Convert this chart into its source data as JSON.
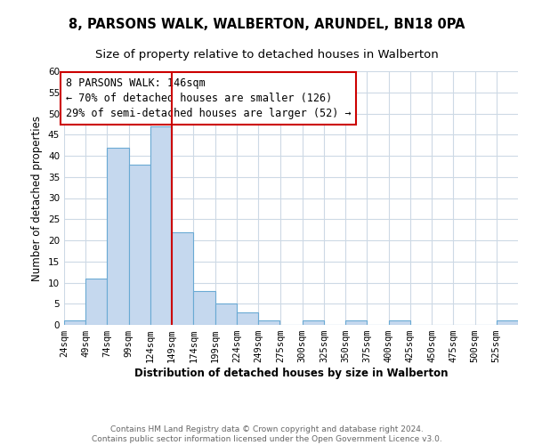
{
  "title": "8, PARSONS WALK, WALBERTON, ARUNDEL, BN18 0PA",
  "subtitle": "Size of property relative to detached houses in Walberton",
  "xlabel": "Distribution of detached houses by size in Walberton",
  "ylabel": "Number of detached properties",
  "bar_color": "#c5d8ee",
  "bar_edge_color": "#6aaad4",
  "bin_edges": [
    24,
    49,
    74,
    99,
    124,
    149,
    174,
    199,
    224,
    249,
    275,
    300,
    325,
    350,
    375,
    400,
    425,
    450,
    475,
    500,
    525,
    550
  ],
  "bin_labels": [
    "24sqm",
    "49sqm",
    "74sqm",
    "99sqm",
    "124sqm",
    "149sqm",
    "174sqm",
    "199sqm",
    "224sqm",
    "249sqm",
    "275sqm",
    "300sqm",
    "325sqm",
    "350sqm",
    "375sqm",
    "400sqm",
    "425sqm",
    "450sqm",
    "475sqm",
    "500sqm",
    "525sqm"
  ],
  "bar_heights": [
    1,
    11,
    42,
    38,
    47,
    22,
    8,
    5,
    3,
    1,
    0,
    1,
    0,
    1,
    0,
    1,
    0,
    0,
    0,
    0,
    1
  ],
  "ylim": [
    0,
    60
  ],
  "yticks": [
    0,
    5,
    10,
    15,
    20,
    25,
    30,
    35,
    40,
    45,
    50,
    55,
    60
  ],
  "vline_x": 149,
  "vline_color": "#cc0000",
  "annotation_line1": "8 PARSONS WALK: 146sqm",
  "annotation_line2": "← 70% of detached houses are smaller (126)",
  "annotation_line3": "29% of semi-detached houses are larger (52) →",
  "footer_line1": "Contains HM Land Registry data © Crown copyright and database right 2024.",
  "footer_line2": "Contains public sector information licensed under the Open Government Licence v3.0.",
  "background_color": "#ffffff",
  "grid_color": "#cdd9e5",
  "title_fontsize": 10.5,
  "subtitle_fontsize": 9.5,
  "axis_label_fontsize": 8.5,
  "tick_fontsize": 7.5,
  "footer_fontsize": 6.5,
  "annotation_fontsize": 8.5
}
